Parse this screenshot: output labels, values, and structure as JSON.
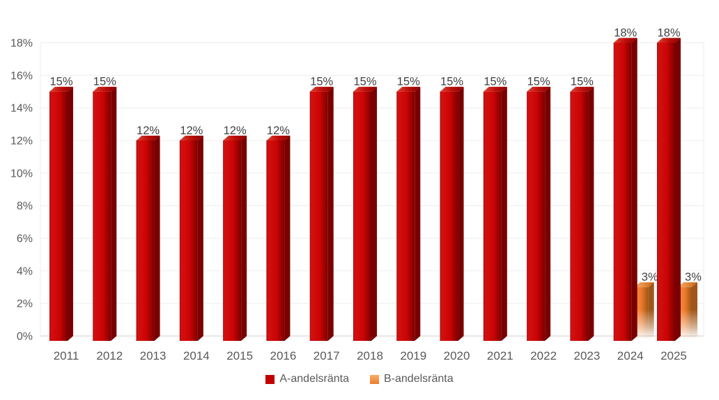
{
  "chart_data": {
    "type": "bar",
    "title": "",
    "categories": [
      "2011",
      "2012",
      "2013",
      "2014",
      "2015",
      "2016",
      "2017",
      "2018",
      "2019",
      "2020",
      "2021",
      "2022",
      "2023",
      "2024",
      "2025"
    ],
    "series": [
      {
        "name": "A-andelsränta",
        "color": "#C00000",
        "values": [
          15,
          15,
          12,
          12,
          12,
          12,
          15,
          15,
          15,
          15,
          15,
          15,
          15,
          18,
          18
        ],
        "data_labels": [
          "15%",
          "15%",
          "12%",
          "12%",
          "12%",
          "12%",
          "15%",
          "15%",
          "15%",
          "15%",
          "15%",
          "15%",
          "15%",
          "18%",
          "18%"
        ]
      },
      {
        "name": "B-andelsränta",
        "color": "#ED7D31",
        "values": [
          null,
          null,
          null,
          null,
          null,
          null,
          null,
          null,
          null,
          null,
          null,
          null,
          null,
          3,
          3
        ],
        "data_labels": [
          null,
          null,
          null,
          null,
          null,
          null,
          null,
          null,
          null,
          null,
          null,
          null,
          null,
          "3%",
          "3%"
        ]
      }
    ],
    "xlabel": "",
    "ylabel": "",
    "ylim": [
      0,
      18
    ],
    "ytick_step": 2,
    "ytick_labels": [
      "0%",
      "2%",
      "4%",
      "6%",
      "8%",
      "10%",
      "12%",
      "14%",
      "16%",
      "18%"
    ],
    "grid": "horizontal",
    "legend_position": "bottom",
    "bar_style": "3d-box",
    "b_series_fade": "fades to white toward baseline",
    "colors": {
      "axis_text": "#595959",
      "data_label_text": "#404040",
      "gridline": "#F0F0F0",
      "axis_line": "#DEDEDE",
      "background": "#FFFFFF"
    }
  }
}
